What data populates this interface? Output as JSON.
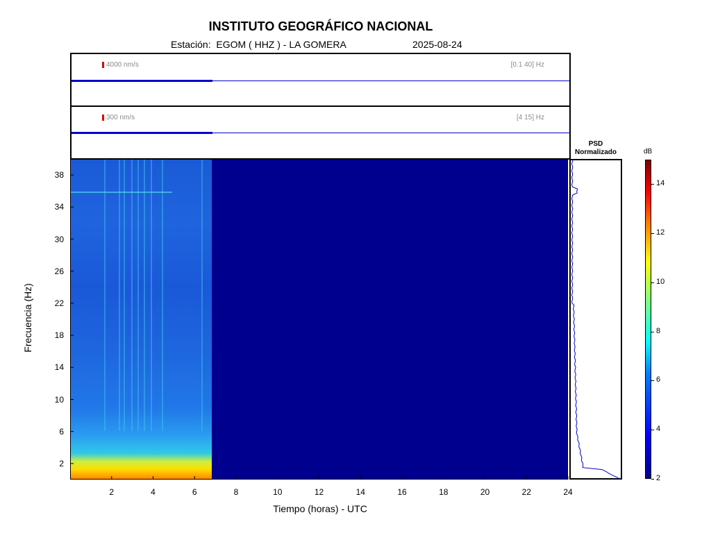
{
  "header": {
    "title": "INSTITUTO GEOGRÁFICO NACIONAL",
    "station": "Estación:  EGOM ( HHZ ) - LA GOMERA",
    "date": "2025-08-24"
  },
  "trace_top": {
    "scale": "4000 nm/s",
    "band": "[0.1 40] Hz"
  },
  "trace_bottom": {
    "scale": "300 nm/s",
    "band": "[4 15] Hz"
  },
  "psd": {
    "title_line1": "PSD",
    "title_line2": "Normalizado"
  },
  "colorbar": {
    "unit": "dB",
    "ticks": [
      2,
      4,
      6,
      8,
      10,
      12,
      14
    ],
    "range": [
      2,
      15
    ]
  },
  "chart_data": {
    "type": "heatmap",
    "title": "INSTITUTO GEOGRÁFICO NACIONAL",
    "xlabel": "Tiempo (horas) - UTC",
    "ylabel": "Frecuencia  (Hz)",
    "xlim": [
      0,
      24
    ],
    "ylim": [
      0,
      40
    ],
    "x_ticks": [
      2,
      4,
      6,
      8,
      10,
      12,
      14,
      16,
      18,
      20,
      22,
      24
    ],
    "y_ticks": [
      2,
      6,
      10,
      14,
      18,
      22,
      26,
      30,
      34,
      38
    ],
    "data_end_hour": 6.8,
    "colors": {
      "background": "#00008f",
      "noise": "#1f5cd8",
      "lowfreq": "#ffd000",
      "trace": "#0000c8"
    }
  }
}
